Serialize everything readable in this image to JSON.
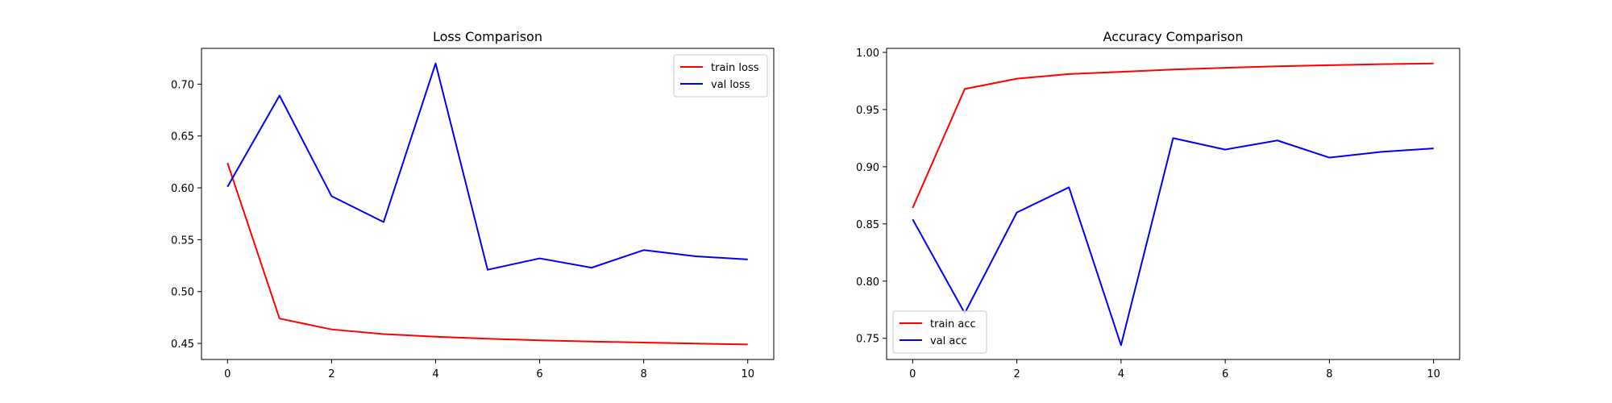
{
  "chart_data": [
    {
      "type": "line",
      "title": "Loss Comparison",
      "xlabel": "",
      "ylabel": "",
      "xlim": [
        -0.5,
        10.5
      ],
      "ylim": [
        0.4345,
        0.7345
      ],
      "xticks": [
        0,
        2,
        4,
        6,
        8,
        10
      ],
      "xtick_labels": [
        "0",
        "2",
        "4",
        "6",
        "8",
        "10"
      ],
      "yticks": [
        0.45,
        0.5,
        0.55,
        0.6,
        0.65,
        0.7
      ],
      "ytick_labels": [
        "0.45",
        "0.50",
        "0.55",
        "0.60",
        "0.65",
        "0.70"
      ],
      "grid": false,
      "legend_position": "top-right",
      "x": [
        0,
        1,
        2,
        3,
        4,
        5,
        6,
        7,
        8,
        9,
        10
      ],
      "series": [
        {
          "name": "train loss",
          "color": "#ff0000",
          "values": [
            0.624,
            0.474,
            0.4635,
            0.459,
            0.4565,
            0.4545,
            0.453,
            0.4518,
            0.4508,
            0.4498,
            0.449
          ]
        },
        {
          "name": "val loss",
          "color": "#0000ff",
          "values": [
            0.601,
            0.689,
            0.592,
            0.567,
            0.72,
            0.521,
            0.532,
            0.523,
            0.54,
            0.534,
            0.531
          ]
        }
      ]
    },
    {
      "type": "line",
      "title": "Accuracy Comparison",
      "xlabel": "",
      "ylabel": "",
      "xlim": [
        -0.5,
        10.5
      ],
      "ylim": [
        0.7315,
        1.0035
      ],
      "xticks": [
        0,
        2,
        4,
        6,
        8,
        10
      ],
      "xtick_labels": [
        "0",
        "2",
        "4",
        "6",
        "8",
        "10"
      ],
      "yticks": [
        0.75,
        0.8,
        0.85,
        0.9,
        0.95,
        1.0
      ],
      "ytick_labels": [
        "0.75",
        "0.80",
        "0.85",
        "0.90",
        "0.95",
        "1.00"
      ],
      "grid": false,
      "legend_position": "bottom-left",
      "x": [
        0,
        1,
        2,
        3,
        4,
        5,
        6,
        7,
        8,
        9,
        10
      ],
      "series": [
        {
          "name": "train acc",
          "color": "#ff0000",
          "values": [
            0.864,
            0.968,
            0.977,
            0.981,
            0.983,
            0.985,
            0.9865,
            0.9878,
            0.9888,
            0.9897,
            0.9903
          ]
        },
        {
          "name": "val acc",
          "color": "#0000ff",
          "values": [
            0.854,
            0.772,
            0.86,
            0.882,
            0.744,
            0.925,
            0.915,
            0.923,
            0.908,
            0.913,
            0.916
          ]
        }
      ]
    }
  ]
}
